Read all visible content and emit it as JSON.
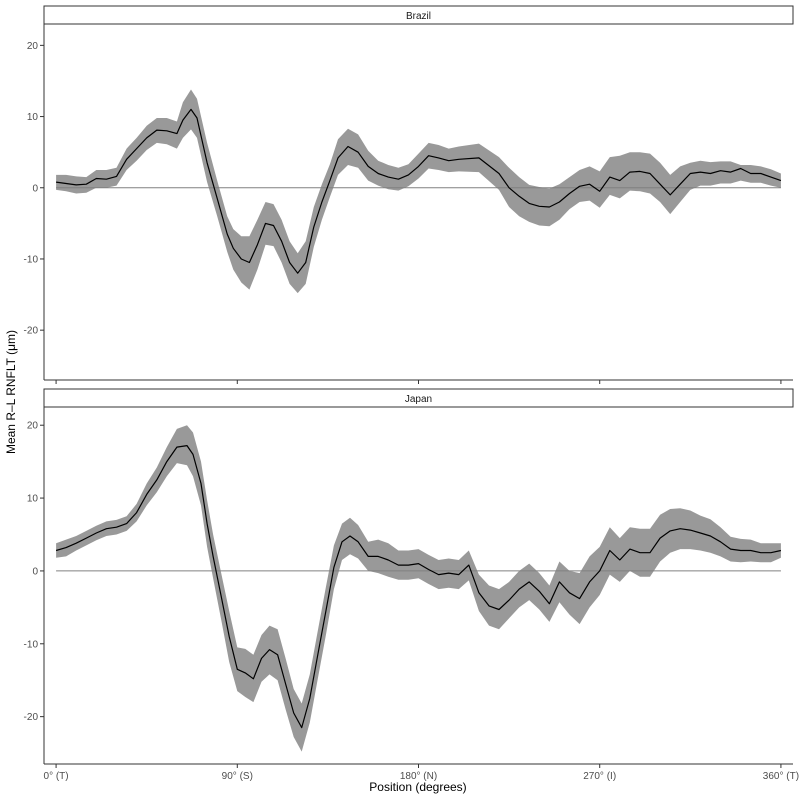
{
  "chart_data": {
    "type": "line",
    "xlabel": "Position (degrees)",
    "ylabel": "Mean R–L RNFLT (μm)",
    "x_ticks": [
      {
        "value": 0,
        "label": "0° (T)"
      },
      {
        "value": 90,
        "label": "90° (S)"
      },
      {
        "value": 180,
        "label": "180° (N)"
      },
      {
        "value": 270,
        "label": "270° (I)"
      },
      {
        "value": 360,
        "label": "360° (T)"
      }
    ],
    "xlim": [
      -6,
      366
    ],
    "grid": false,
    "reference_line_y": 0,
    "colors": {
      "line": "#000000",
      "band": "#999999",
      "reference": "#808080"
    },
    "panels": [
      {
        "strip": "Brazil",
        "ylim": [
          -27,
          23
        ],
        "y_ticks": [
          -20,
          -10,
          0,
          10,
          20
        ],
        "series": [
          {
            "x": [
              0,
              5,
              10,
              15,
              20,
              25,
              30,
              35,
              40,
              45,
              50,
              55,
              60,
              63,
              67,
              70,
              75,
              80,
              85,
              88,
              92,
              96,
              100,
              104,
              108,
              112,
              116,
              120,
              124,
              128,
              132,
              136,
              140,
              145,
              150,
              155,
              160,
              165,
              170,
              175,
              180,
              185,
              190,
              195,
              200,
              210,
              220,
              225,
              230,
              235,
              240,
              245,
              250,
              255,
              260,
              265,
              270,
              275,
              280,
              285,
              290,
              295,
              300,
              305,
              310,
              315,
              320,
              325,
              330,
              335,
              340,
              345,
              350,
              355,
              360
            ],
            "mean": [
              0.8,
              0.6,
              0.4,
              0.5,
              1.3,
              1.2,
              1.6,
              4.0,
              5.5,
              7.0,
              8.1,
              8.0,
              7.6,
              9.5,
              11.0,
              9.8,
              3.5,
              -1.5,
              -6.5,
              -8.5,
              -10.0,
              -10.5,
              -8.0,
              -5.0,
              -5.3,
              -7.5,
              -10.5,
              -12.0,
              -10.5,
              -5.5,
              -2.0,
              1.0,
              4.2,
              5.8,
              5.0,
              3.0,
              2.0,
              1.5,
              1.2,
              1.8,
              3.0,
              4.5,
              4.2,
              3.8,
              4.0,
              4.2,
              2.0,
              0.0,
              -1.2,
              -2.2,
              -2.6,
              -2.7,
              -2.0,
              -0.8,
              0.2,
              0.5,
              -0.5,
              1.5,
              1.0,
              2.2,
              2.3,
              2.0,
              0.5,
              -1.0,
              0.5,
              2.0,
              2.2,
              2.0,
              2.4,
              2.2,
              2.7,
              2.0,
              2.0,
              1.5,
              1.0
            ],
            "lower": [
              -0.3,
              -0.5,
              -0.8,
              -0.7,
              0.0,
              0.0,
              0.3,
              2.5,
              3.8,
              5.3,
              6.3,
              6.1,
              5.5,
              7.0,
              8.2,
              7.0,
              0.8,
              -4.0,
              -9.0,
              -11.5,
              -13.3,
              -14.3,
              -11.5,
              -8.0,
              -8.2,
              -10.5,
              -13.5,
              -14.8,
              -13.5,
              -8.3,
              -4.5,
              -1.3,
              1.8,
              3.2,
              2.8,
              1.0,
              0.3,
              -0.2,
              -0.4,
              0.2,
              1.3,
              2.7,
              2.5,
              2.2,
              2.3,
              2.2,
              -0.3,
              -2.7,
              -4.0,
              -4.8,
              -5.3,
              -5.4,
              -4.5,
              -3.0,
              -2.0,
              -1.8,
              -2.8,
              -1.0,
              -1.5,
              -0.4,
              -0.5,
              -0.8,
              -2.0,
              -3.7,
              -2.0,
              -0.3,
              0.3,
              0.3,
              0.6,
              0.6,
              1.0,
              0.7,
              0.7,
              0.3,
              0.0
            ],
            "upper": [
              1.8,
              1.8,
              1.6,
              1.5,
              2.5,
              2.5,
              2.8,
              5.5,
              7.0,
              8.7,
              9.8,
              9.8,
              9.3,
              12.0,
              13.8,
              12.5,
              6.3,
              1.0,
              -4.0,
              -5.8,
              -6.8,
              -6.8,
              -4.5,
              -2.0,
              -2.3,
              -4.5,
              -7.5,
              -9.2,
              -7.5,
              -2.7,
              0.5,
              3.3,
              6.8,
              8.3,
              7.5,
              5.2,
              3.8,
              3.2,
              2.8,
              3.3,
              4.8,
              6.3,
              6.0,
              5.5,
              5.8,
              6.2,
              4.3,
              2.8,
              1.5,
              0.4,
              0.1,
              -0.1,
              0.5,
              1.5,
              2.5,
              3.0,
              2.3,
              4.3,
              4.5,
              5.0,
              5.0,
              4.8,
              3.5,
              1.8,
              3.0,
              3.5,
              3.8,
              3.6,
              3.7,
              3.7,
              3.2,
              3.2,
              3.0,
              2.6,
              2.0
            ]
          }
        ]
      },
      {
        "strip": "Japan",
        "ylim": [
          -26.5,
          22.5
        ],
        "y_ticks": [
          -20,
          -10,
          0,
          10,
          20
        ],
        "series": [
          {
            "x": [
              0,
              5,
              10,
              15,
              20,
              25,
              30,
              35,
              40,
              45,
              50,
              55,
              60,
              65,
              68,
              72,
              75,
              78,
              82,
              86,
              90,
              94,
              98,
              102,
              106,
              110,
              114,
              118,
              122,
              126,
              130,
              134,
              138,
              142,
              146,
              150,
              155,
              160,
              165,
              170,
              175,
              180,
              185,
              190,
              195,
              200,
              205,
              210,
              215,
              220,
              225,
              230,
              235,
              240,
              245,
              250,
              255,
              260,
              265,
              270,
              275,
              280,
              285,
              290,
              295,
              300,
              305,
              310,
              315,
              320,
              325,
              330,
              335,
              340,
              345,
              350,
              355,
              360
            ],
            "mean": [
              2.8,
              3.2,
              3.8,
              4.5,
              5.2,
              5.8,
              6.0,
              6.5,
              8.0,
              10.5,
              12.5,
              15.0,
              17.0,
              17.2,
              16.0,
              12.0,
              6.5,
              2.0,
              -3.5,
              -9.0,
              -13.5,
              -14.0,
              -14.8,
              -12.0,
              -10.8,
              -11.5,
              -15.5,
              -19.5,
              -21.5,
              -17.5,
              -11.5,
              -5.5,
              0.5,
              4.0,
              4.8,
              4.0,
              2.0,
              2.0,
              1.5,
              0.8,
              0.8,
              1.0,
              0.2,
              -0.5,
              -0.3,
              -0.5,
              0.8,
              -3.0,
              -4.8,
              -5.3,
              -4.0,
              -2.5,
              -1.5,
              -2.8,
              -4.5,
              -1.5,
              -3.0,
              -3.8,
              -1.5,
              0.0,
              2.8,
              1.5,
              3.0,
              2.5,
              2.5,
              4.5,
              5.5,
              5.8,
              5.6,
              5.2,
              4.8,
              4.0,
              3.0,
              2.8,
              2.8,
              2.5,
              2.5,
              2.8
            ],
            "lower": [
              1.8,
              2.0,
              2.8,
              3.5,
              4.2,
              4.8,
              5.0,
              5.5,
              6.8,
              9.0,
              10.8,
              13.0,
              14.8,
              14.5,
              13.0,
              9.0,
              3.3,
              -1.0,
              -6.7,
              -12.5,
              -16.5,
              -17.3,
              -18.0,
              -15.2,
              -14.2,
              -15.0,
              -19.0,
              -22.8,
              -24.8,
              -20.8,
              -14.8,
              -8.8,
              -2.5,
              1.5,
              2.3,
              1.7,
              0.0,
              -0.3,
              -0.8,
              -1.2,
              -1.2,
              -1.0,
              -1.8,
              -2.5,
              -2.3,
              -2.5,
              -1.3,
              -5.5,
              -7.5,
              -8.0,
              -6.5,
              -5.0,
              -4.0,
              -5.3,
              -7.0,
              -4.3,
              -6.0,
              -7.3,
              -5.0,
              -3.3,
              -0.5,
              -1.5,
              0.0,
              -0.8,
              -0.8,
              1.3,
              2.5,
              3.0,
              3.0,
              2.8,
              2.5,
              2.0,
              1.3,
              1.2,
              1.3,
              1.2,
              1.2,
              1.8
            ],
            "upper": [
              3.8,
              4.3,
              4.8,
              5.5,
              6.2,
              6.8,
              7.0,
              7.5,
              9.2,
              12.0,
              14.2,
              17.0,
              19.5,
              20.0,
              19.0,
              15.0,
              9.7,
              5.0,
              -0.3,
              -5.5,
              -10.5,
              -10.7,
              -11.5,
              -8.8,
              -7.5,
              -8.0,
              -12.0,
              -16.2,
              -18.2,
              -14.2,
              -8.2,
              -2.2,
              3.5,
              6.5,
              7.3,
              6.3,
              4.0,
              4.3,
              3.8,
              2.8,
              2.8,
              3.0,
              2.2,
              1.5,
              1.7,
              1.5,
              2.8,
              -0.5,
              -2.0,
              -2.5,
              -1.5,
              0.0,
              1.0,
              -0.3,
              -2.0,
              1.3,
              0.0,
              -0.3,
              2.0,
              3.3,
              6.0,
              4.5,
              6.0,
              5.8,
              5.8,
              7.7,
              8.5,
              8.6,
              8.3,
              7.6,
              7.1,
              6.0,
              4.7,
              4.4,
              4.3,
              3.8,
              3.8,
              3.8
            ]
          }
        ]
      }
    ]
  }
}
